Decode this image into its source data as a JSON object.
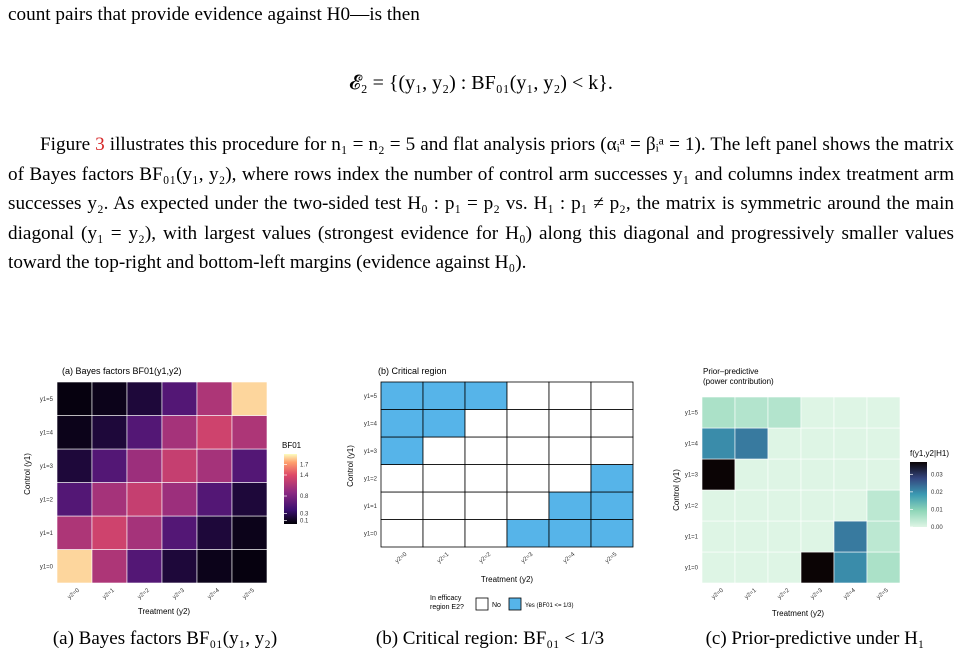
{
  "intro_line": "count pairs that provide evidence against H0—is then",
  "equation": "𝓔₂ = {(y₁, y₂) : BF₀₁(y₁, y₂) < k}.",
  "paragraph": {
    "sentence1_a": "Figure",
    "figure_ref": "3",
    "sentence1_b": "illustrates this procedure for n₁ = n₂ = 5 and flat analysis priors (αᵢᵃ = βᵢᵃ = 1).",
    "sentence2": "The left panel shows the matrix of Bayes factors BF₀₁(y₁, y₂), where rows index the number of control arm successes y₁ and columns index treatment arm successes y₂. As expected under the two-sided test H₀ : p₁ = p₂ vs. H₁ : p₁ ≠ p₂, the matrix is symmetric around the main diagonal (y₁ = y₂), with largest values (strongest evidence for H₀) along this diagonal and progressively smaller values toward the top-right and bottom-left margins (evidence against H₀)."
  },
  "panels": {
    "a": {
      "title": "(a) Bayes factors BF01(y1,y2)",
      "ylabel": "Control (y1)",
      "xlabel": "Treatment (y2)",
      "legend_title": "BF01",
      "legend_ticks": [
        "1.7",
        "1.4",
        "0.8",
        "0.3",
        "0.1"
      ],
      "caption": "(a) Bayes factors BF₀₁(y₁, y₂)"
    },
    "b": {
      "title": "(b) Critical region",
      "ylabel": "Control (y1)",
      "xlabel": "Treatment (y2)",
      "legend_title_line1": "In efficacy",
      "legend_title_line2": "region E2?",
      "legend_no": "No",
      "legend_yes": "Yes (BF01 <= 1/3)",
      "caption": "(b) Critical region: BF₀₁ < 1/3"
    },
    "c": {
      "title_line1": "Prior–predictive",
      "title_line2": "(power contribution)",
      "ylabel": "Control (y1)",
      "xlabel": "Treatment (y2)",
      "legend_title": "f(y1,y2|H1)",
      "legend_ticks": [
        "0.03",
        "0.02",
        "0.01",
        "0.00"
      ],
      "caption": "(c) Prior-predictive under H₁"
    }
  },
  "chart_data": [
    {
      "type": "heatmap",
      "title": "(a) Bayes factors BF01(y1,y2)",
      "xlabel": "Treatment (y2)",
      "ylabel": "Control (y1)",
      "x_categories": [
        "y2=0",
        "y2=1",
        "y2=2",
        "y2=3",
        "y2=4",
        "y2=5"
      ],
      "y_categories": [
        "y1=0",
        "y1=1",
        "y1=2",
        "y1=3",
        "y1=4",
        "y1=5"
      ],
      "values": [
        [
          1.9,
          1.1,
          0.55,
          0.2,
          0.08,
          0.04
        ],
        [
          1.1,
          1.3,
          1.05,
          0.55,
          0.2,
          0.08
        ],
        [
          0.55,
          1.05,
          1.25,
          1.0,
          0.55,
          0.2
        ],
        [
          0.2,
          0.55,
          1.0,
          1.25,
          1.05,
          0.55
        ],
        [
          0.08,
          0.2,
          0.55,
          1.05,
          1.3,
          1.1
        ],
        [
          0.04,
          0.08,
          0.2,
          0.55,
          1.1,
          1.9
        ]
      ],
      "legend_title": "BF01",
      "color_range": [
        0,
        2.0
      ]
    },
    {
      "type": "heatmap",
      "title": "(b) Critical region",
      "xlabel": "Treatment (y2)",
      "ylabel": "Control (y1)",
      "x_categories": [
        "y2=0",
        "y2=1",
        "y2=2",
        "y2=3",
        "y2=4",
        "y2=5"
      ],
      "y_categories": [
        "y1=0",
        "y1=1",
        "y1=2",
        "y1=3",
        "y1=4",
        "y1=5"
      ],
      "values": [
        [
          0,
          0,
          0,
          1,
          1,
          1
        ],
        [
          0,
          0,
          0,
          0,
          1,
          1
        ],
        [
          0,
          0,
          0,
          0,
          0,
          1
        ],
        [
          1,
          0,
          0,
          0,
          0,
          0
        ],
        [
          1,
          1,
          0,
          0,
          0,
          0
        ],
        [
          1,
          1,
          1,
          0,
          0,
          0
        ]
      ],
      "legend_entries": [
        "No",
        "Yes (BF01 <= 1/3)"
      ],
      "colors": {
        "no": "#ffffff",
        "yes": "#56b4e9"
      }
    },
    {
      "type": "heatmap",
      "title": "Prior–predictive (power contribution)",
      "xlabel": "Treatment (y2)",
      "ylabel": "Control (y1)",
      "x_categories": [
        "y2=0",
        "y2=1",
        "y2=2",
        "y2=3",
        "y2=4",
        "y2=5"
      ],
      "y_categories": [
        "y1=0",
        "y1=1",
        "y1=2",
        "y1=3",
        "y1=4",
        "y1=5"
      ],
      "values": [
        [
          0,
          0,
          0,
          0.037,
          0.02,
          0.006
        ],
        [
          0,
          0,
          0,
          0,
          0.022,
          0.004
        ],
        [
          0,
          0,
          0,
          0,
          0,
          0.004
        ],
        [
          0.037,
          0,
          0,
          0,
          0,
          0
        ],
        [
          0.02,
          0.022,
          0,
          0,
          0,
          0
        ],
        [
          0.006,
          0.005,
          0.005,
          0,
          0,
          0
        ]
      ],
      "legend_title": "f(y1,y2|H1)",
      "color_range": [
        0,
        0.037
      ]
    }
  ]
}
